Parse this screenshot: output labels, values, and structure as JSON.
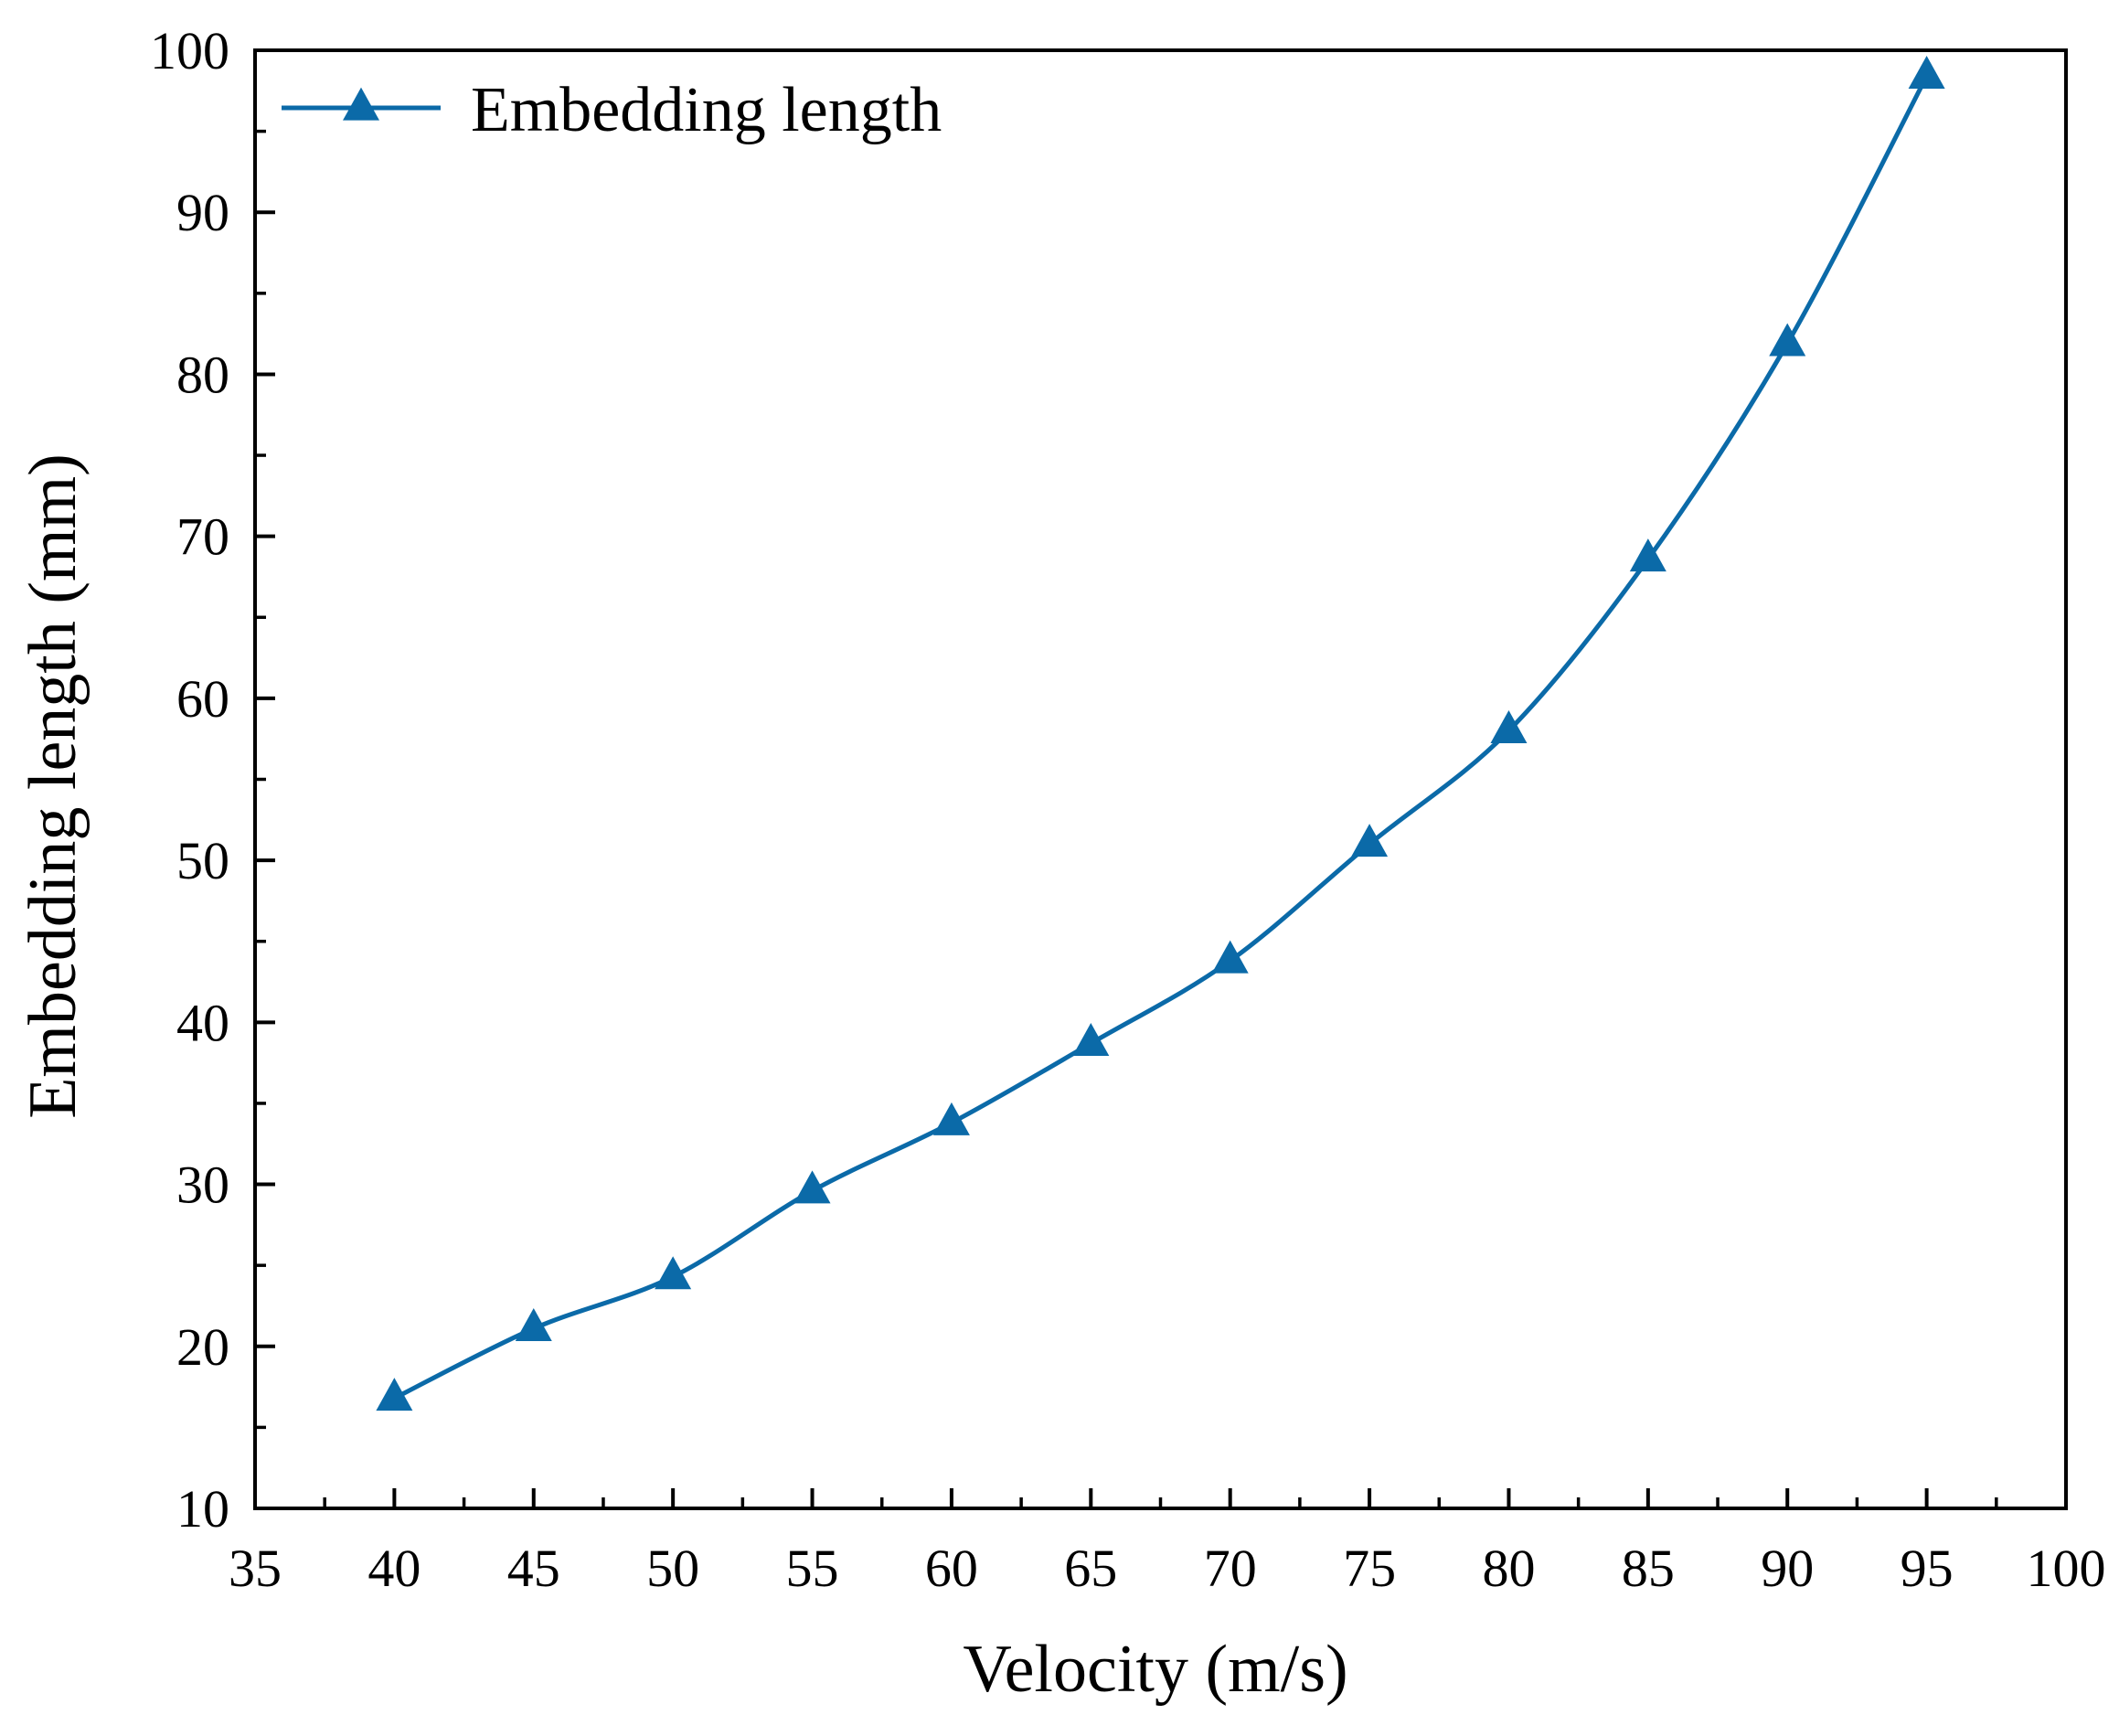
{
  "chart_data": {
    "type": "line",
    "title": "",
    "xlabel": "Velocity (m/s)",
    "ylabel": "Embedding length (mm)",
    "xlim": [
      35,
      100
    ],
    "ylim": [
      10,
      100
    ],
    "xticks": [
      35,
      40,
      45,
      50,
      55,
      60,
      65,
      70,
      75,
      80,
      85,
      90,
      95,
      100
    ],
    "yticks": [
      10,
      20,
      30,
      40,
      50,
      60,
      70,
      80,
      90,
      100
    ],
    "x_minor_step": 2.5,
    "y_minor_step": 5,
    "grid": false,
    "legend_position": "top-left",
    "series": [
      {
        "name": "Embedding length",
        "color": "#0b6aa8",
        "marker": "triangle",
        "x": [
          40,
          45,
          50,
          55,
          60,
          65,
          70,
          75,
          80,
          85,
          90,
          95
        ],
        "y": [
          16.8,
          21.1,
          24.3,
          29.6,
          33.8,
          38.7,
          43.8,
          51.0,
          58.0,
          68.6,
          81.9,
          98.4
        ]
      }
    ]
  },
  "colors": {
    "axis": "#000000",
    "background": "#ffffff",
    "series_line": "#0b6aa8"
  }
}
